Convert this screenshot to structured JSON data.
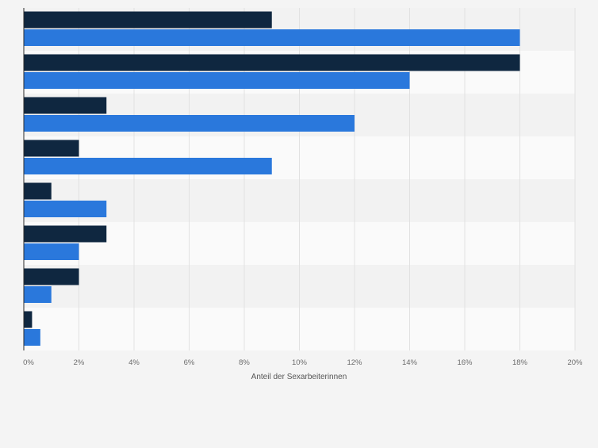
{
  "chart_data": {
    "type": "bar",
    "orientation": "horizontal",
    "categories": [
      "",
      "",
      "",
      "",
      "",
      "",
      "",
      ""
    ],
    "series": [
      {
        "values": [
          9,
          18,
          3,
          2,
          1,
          3,
          2,
          0.3
        ]
      },
      {
        "values": [
          18,
          14,
          12,
          9,
          3,
          2,
          1,
          0.6
        ]
      }
    ],
    "xlabel": "Anteil der Sexarbeiterinnen",
    "ylabel": "",
    "xlim": [
      0,
      20
    ],
    "x_ticks": [
      {
        "value": 0,
        "label": "0%"
      },
      {
        "value": 2,
        "label": "2%"
      },
      {
        "value": 4,
        "label": "4%"
      },
      {
        "value": 6,
        "label": "6%"
      },
      {
        "value": 8,
        "label": "8%"
      },
      {
        "value": 10,
        "label": "10%"
      },
      {
        "value": 12,
        "label": "12%"
      },
      {
        "value": 14,
        "label": "14%"
      },
      {
        "value": 16,
        "label": "16%"
      },
      {
        "value": 18,
        "label": "18%"
      },
      {
        "value": 20,
        "label": "20%"
      }
    ],
    "grid": true,
    "legend": "none"
  },
  "colors": {
    "page_background": "#f4f4f4",
    "band_light": "#fafafa",
    "band_dark": "#f2f2f2",
    "gridline": "#e1e1e1",
    "axis": "#2b2b2b",
    "series_1": "#0f2740",
    "series_2": "#2a78dc",
    "tick_text": "#6b6b6b"
  }
}
